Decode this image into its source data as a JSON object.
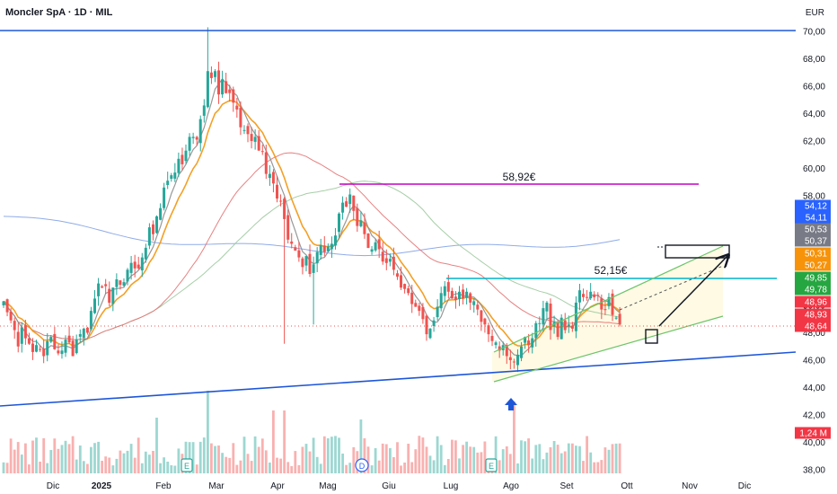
{
  "header": {
    "symbol_title": "Moncler SpA · 1D · MIL",
    "currency": "EUR"
  },
  "chart_data": {
    "type": "candlestick",
    "title": "Moncler SpA · 1D · MIL",
    "y_axis_unit": "EUR",
    "ylim": [
      38,
      71
    ],
    "y_ticks": [
      "38,00",
      "40,00",
      "42,00",
      "44,00",
      "46,00",
      "48,00",
      "50,00",
      "52,00",
      "54,00",
      "56,00",
      "58,00",
      "60,00",
      "62,00",
      "64,00",
      "66,00",
      "68,00",
      "70,00"
    ],
    "x_ticks": [
      "Dic",
      "2025",
      "Feb",
      "Mar",
      "Apr",
      "Mag",
      "Giu",
      "Lug",
      "Ago",
      "Set",
      "Ott",
      "Nov",
      "Dic"
    ],
    "grid": false,
    "series_close": [
      50.3,
      49.5,
      48.9,
      48.2,
      47.0,
      48.4,
      47.6,
      47.2,
      46.6,
      47.1,
      46.8,
      46.3,
      47.4,
      47.7,
      46.8,
      46.5,
      46.7,
      47.5,
      47.3,
      46.3,
      47.5,
      47.9,
      48.3,
      48.0,
      49.6,
      50.5,
      51.6,
      51.3,
      51.4,
      50.2,
      51.3,
      51.9,
      51.5,
      51.7,
      52.6,
      53.1,
      52.7,
      52.7,
      53.5,
      54.2,
      55.7,
      55.2,
      56.5,
      57.1,
      58.6,
      59.1,
      59.5,
      59.7,
      60.7,
      60.3,
      61.3,
      62.3,
      62.3,
      62.1,
      63.6,
      64.6,
      67.1,
      66.6,
      67.1,
      65.4,
      66.5,
      65.5,
      65.5,
      64.8,
      64.3,
      63.0,
      62.8,
      62.5,
      62.0,
      62.3,
      61.3,
      61.2,
      59.6,
      59.6,
      58.9,
      57.8,
      57.6,
      56.3,
      54.8,
      54.5,
      54.0,
      53.5,
      52.8,
      53.6,
      52.3,
      53.0,
      53.9,
      54.4,
      53.9,
      54.3,
      54.5,
      55.1,
      56.7,
      57.5,
      57.2,
      58.1,
      56.9,
      55.8,
      56.2,
      55.2,
      54.2,
      54.1,
      54.6,
      54.1,
      53.2,
      53.1,
      53.4,
      52.6,
      52.1,
      51.3,
      51.2,
      50.9,
      50.1,
      49.9,
      49.6,
      49.0,
      47.9,
      48.3,
      48.9,
      49.9,
      50.9,
      51.4,
      51.0,
      50.5,
      50.4,
      51.0,
      50.5,
      51.0,
      50.2,
      50.3,
      49.7,
      48.8,
      48.6,
      47.9,
      47.4,
      47.3,
      46.7,
      47.1,
      46.3,
      46.0,
      45.9,
      46.4,
      47.0,
      47.7,
      47.1,
      47.6,
      48.7,
      48.7,
      49.8,
      50.2,
      48.2,
      48.8,
      47.7,
      49.1,
      48.2,
      48.6,
      48.3,
      50.2,
      51.1,
      50.6,
      50.6,
      51.0,
      50.6,
      50.7,
      49.7,
      49.7,
      50.6,
      49.3,
      49.1,
      48.6
    ],
    "sma_fast_last": 50.53,
    "sma_mid_last": 50.27,
    "sma_long_last": 54.11,
    "annotations": [
      {
        "label": "58,92€",
        "value": 58.92,
        "color": "#c300c3"
      },
      {
        "label": "52,15€",
        "value": 52.15,
        "color": "#00b2c8"
      }
    ],
    "event_markers": [
      "E",
      "D",
      "E"
    ],
    "price_badges": [
      {
        "label": "54,12",
        "bg": "#2962ff"
      },
      {
        "label": "54,11",
        "bg": "#2962ff"
      },
      {
        "label": "50,53",
        "bg": "#787b86"
      },
      {
        "label": "50,37",
        "bg": "#787b86"
      },
      {
        "label": "50,31",
        "bg": "#f7930a"
      },
      {
        "label": "50,27",
        "bg": "#f7930a"
      },
      {
        "label": "49,85",
        "bg": "#26a641"
      },
      {
        "label": "49,78",
        "bg": "#26a641"
      },
      {
        "label": "48,96",
        "bg": "#f23645"
      },
      {
        "label": "48,93",
        "bg": "#f23645"
      },
      {
        "label": "48,64",
        "bg": "#f23645"
      },
      {
        "label": "1,24 M",
        "bg": "#f23645"
      }
    ],
    "colors": {
      "up": "#26a69a",
      "down": "#ef5350",
      "ma_fast": "#8d8d8d",
      "ma_mid": "#f2960e",
      "ma_slow": "#e57373",
      "ma_green": "#9dc99f",
      "ma_long": "#6a8fe0",
      "trend": "#1e56d8",
      "channel": "#6cc46a",
      "magenta": "#c300c3",
      "cyan": "#00b2c8"
    }
  }
}
